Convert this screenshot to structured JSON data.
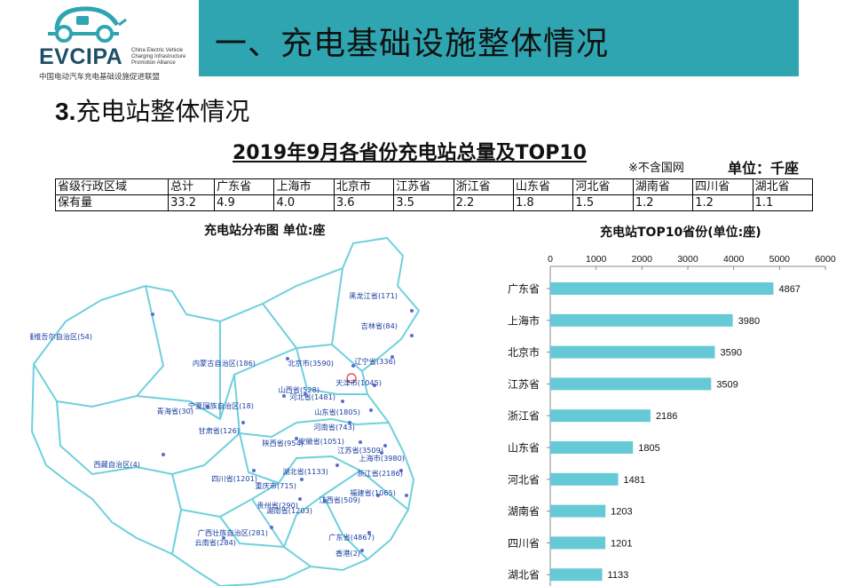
{
  "logo": {
    "wordmark": "EVCIPA",
    "english": "China Electric Vehicle Charging Infrastructure Promotion Alliance",
    "chinese": "中国电动汽车充电基础设施促进联盟",
    "brand_color": "#2ea5b1"
  },
  "header": {
    "title": "一、充电基础设施整体情况",
    "banner_color": "#2ea5b1"
  },
  "section": {
    "number": "3.",
    "title": "充电站整体情况"
  },
  "summary": {
    "title": "2019年9月各省份充电站总量及TOP10",
    "note": "※不含国网",
    "unit": "单位：千座",
    "header": [
      "省级行政区域",
      "总计",
      "广东省",
      "上海市",
      "北京市",
      "江苏省",
      "浙江省",
      "山东省",
      "河北省",
      "湖南省",
      "四川省",
      "湖北省"
    ],
    "values": [
      "保有量",
      "33.2",
      "4.9",
      "4.0",
      "3.6",
      "3.5",
      "2.2",
      "1.8",
      "1.5",
      "1.2",
      "1.2",
      "1.1"
    ]
  },
  "map": {
    "title": "充电站分布图   单位:座",
    "line_color": "#6fd0dc",
    "dot_color": "#5b6bd0",
    "labels": [
      "新疆维吾尔自治区(54)",
      "西藏自治区(4)",
      "青海省(30)",
      "甘肃省(126)",
      "宁夏回族自治区(18)",
      "内蒙古自治区(186)",
      "北京市(3590)",
      "黑龙江省(171)",
      "吉林省(84)",
      "辽宁省(336)",
      "天津市(1045)",
      "河北省(1481)",
      "山西省(528)",
      "山东省(1805)",
      "河南省(743)",
      "陕西省(954)",
      "安徽省(1051)",
      "江苏省(3509)",
      "上海市(3980)",
      "浙江省(2186)",
      "湖北省(1133)",
      "四川省(1201)",
      "重庆市(715)",
      "贵州省(290)",
      "湖南省(1203)",
      "江西省(509)",
      "福建省(1065)",
      "广西壮族自治区(281)",
      "广东省(4867)",
      "云南省(284)",
      "香港(2)"
    ]
  },
  "chart_data": {
    "type": "bar",
    "orientation": "horizontal",
    "title": "充电站TOP10省份(单位:座)",
    "categories": [
      "广东省",
      "上海市",
      "北京市",
      "江苏省",
      "浙江省",
      "山东省",
      "河北省",
      "湖南省",
      "四川省",
      "湖北省"
    ],
    "values": [
      4867,
      3980,
      3590,
      3509,
      2186,
      1805,
      1481,
      1203,
      1201,
      1133
    ],
    "xlim": [
      0,
      6000
    ],
    "ticks": [
      "0",
      "1000",
      "2000",
      "3000",
      "4000",
      "5000",
      "6000"
    ],
    "axis_position": "top",
    "grid": false,
    "legend": "none",
    "bar_color": "#66c9d6"
  }
}
